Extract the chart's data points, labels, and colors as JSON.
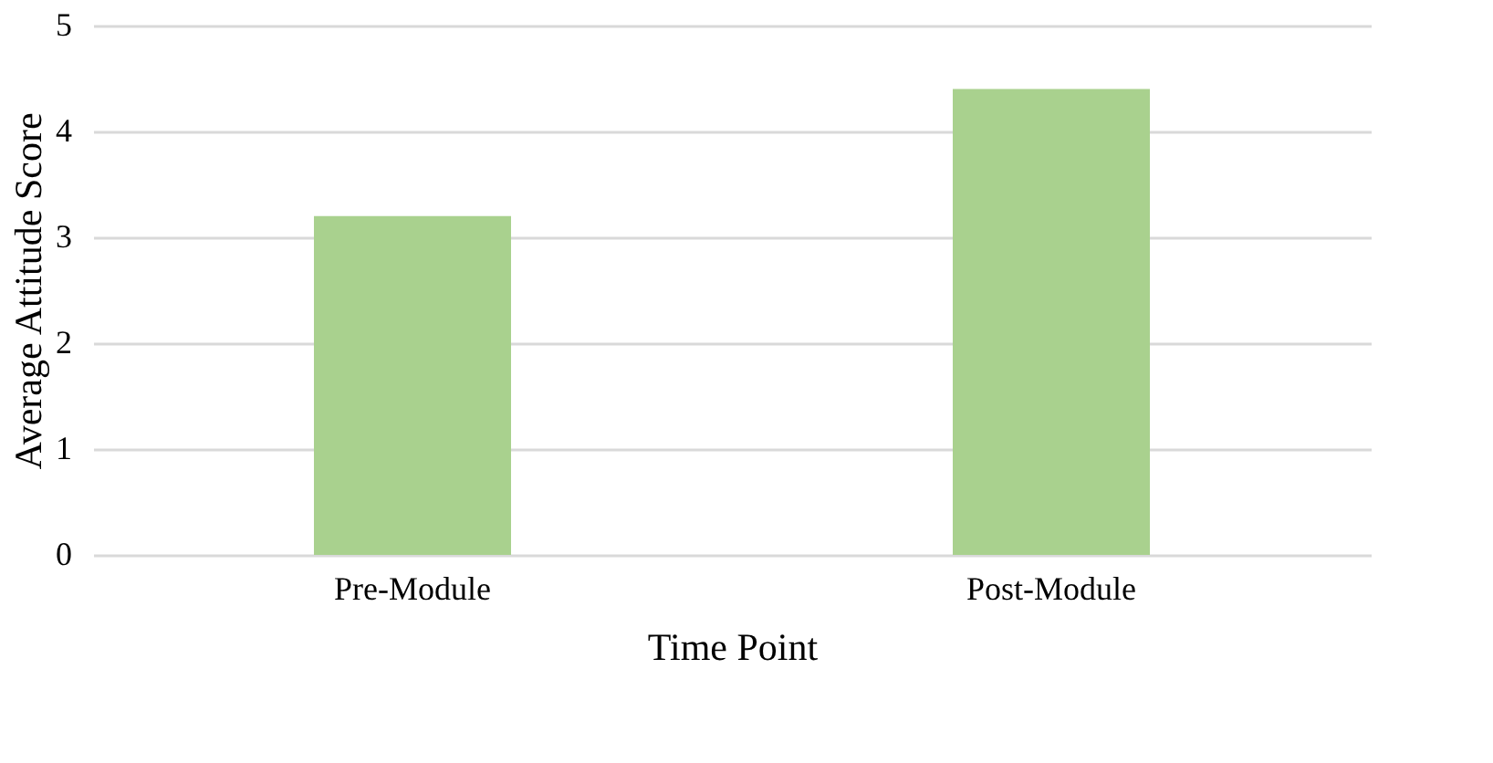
{
  "chart_data": {
    "type": "bar",
    "xlabel": "Time Point",
    "ylabel": "Average Attitude Score",
    "categories": [
      "Pre-Module",
      "Post-Module"
    ],
    "values": [
      3.2,
      4.4
    ],
    "color": "#a9d18e",
    "ylim": [
      0,
      5
    ],
    "yticks": [
      0,
      1,
      2,
      3,
      4,
      5
    ],
    "grid": "y",
    "legend": false
  }
}
